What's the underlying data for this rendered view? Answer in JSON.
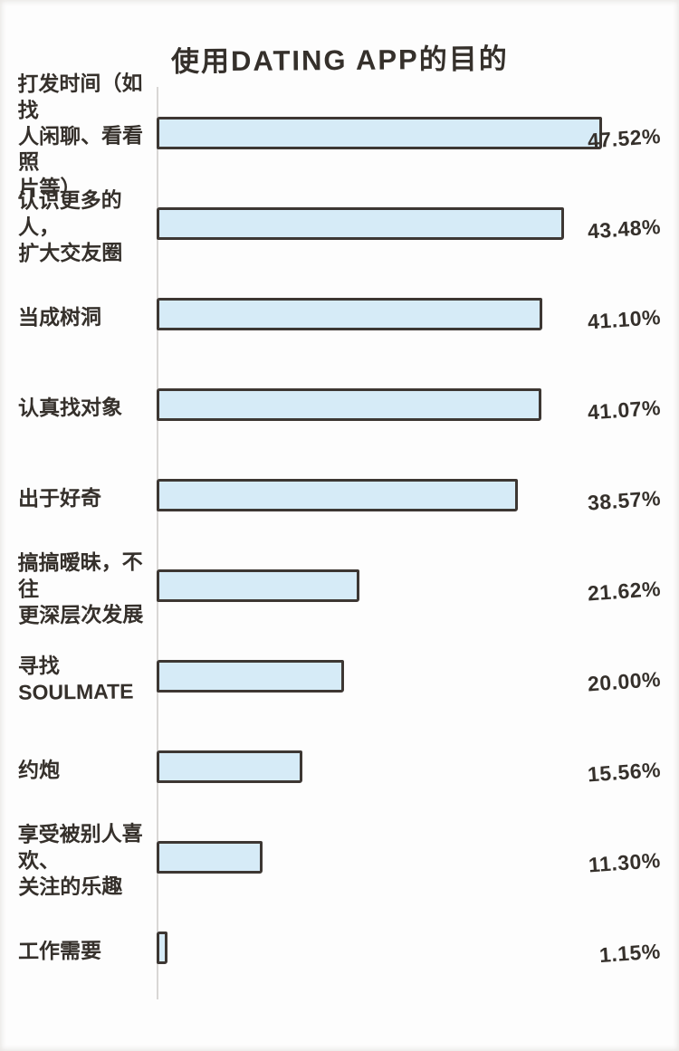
{
  "title": "使用DATING APP的目的",
  "colors": {
    "bar_fill": "#d6ebf7",
    "bar_border": "#3d3733",
    "text": "#35302b",
    "axis": "#d9d7d5"
  },
  "chart_data": {
    "type": "bar",
    "orientation": "horizontal",
    "title": "使用DATING APP的目的",
    "categories": [
      "打发时间（如找人闲聊、看看照片等）",
      "认识更多的人，扩大交友圈",
      "当成树洞",
      "认真找对象",
      "出于好奇",
      "搞搞暧昧，不往更深层次发展",
      "寻找SOULMATE",
      "约炮",
      "享受被别人喜欢、关注的乐趣",
      "工作需要"
    ],
    "label_lines": [
      [
        "打发时间（如找",
        "人闲聊、看看照",
        "片等）"
      ],
      [
        "认识更多的人，",
        "扩大交友圈"
      ],
      [
        "当成树洞"
      ],
      [
        "认真找对象"
      ],
      [
        "出于好奇"
      ],
      [
        "搞搞暧昧，不往",
        "更深层次发展"
      ],
      [
        "寻找SOULMATE"
      ],
      [
        "约炮"
      ],
      [
        "享受被别人喜欢、",
        "关注的乐趣"
      ],
      [
        "工作需要"
      ]
    ],
    "values": [
      47.52,
      43.48,
      41.1,
      41.07,
      38.57,
      21.62,
      20.0,
      15.56,
      11.3,
      1.15
    ],
    "value_labels": [
      "47.52%",
      "43.48%",
      "41.10%",
      "41.07%",
      "38.57%",
      "21.62%",
      "20.00%",
      "15.56%",
      "11.30%",
      "1.15%"
    ],
    "unit": "%",
    "xlim": [
      0,
      50
    ],
    "grid": false,
    "legend": false,
    "value_label_position": "right-aligned-column"
  }
}
